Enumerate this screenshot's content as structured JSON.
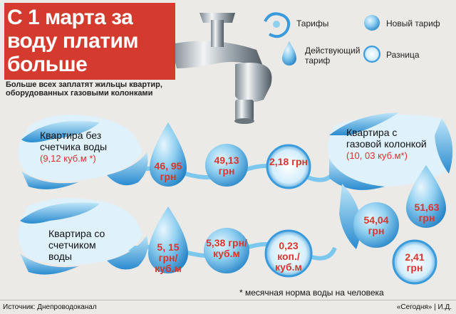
{
  "title": "С 1 марта за воду платим больше",
  "subtitle": "Больше всех заплатят жильцы квартир, оборудованных газовыми колонками",
  "legend": {
    "tariffs": "Тарифы",
    "new_tariff": "Новый тариф",
    "current_tariff": "Действующий тариф",
    "difference": "Разница"
  },
  "apartments": {
    "no_meter": {
      "label": "Квартира без счетчика воды",
      "norm": "(9,12 куб.м *)",
      "current": "46, 95 грн",
      "new": "49,13 грн",
      "diff": "2,18 грн"
    },
    "with_meter": {
      "label": "Квартира со счетчиком воды",
      "current": "5, 15 грн/ куб.м",
      "new": "5,38 грн/ куб.м",
      "diff": "0,23 коп./ куб.м"
    },
    "gas": {
      "label": "Квартира с газовой колонкой",
      "norm": "(10, 03 куб.м*)",
      "current": "51,63 грн",
      "new": "54,04 грн",
      "diff": "2,41 грн"
    }
  },
  "footnote": "* месячная норма воды на человека",
  "source": "Источник: Днепроводоканал",
  "credit": "«Сегодня» | И.Д.",
  "colors": {
    "banner": "#d43a2e",
    "value": "#d8362b",
    "drop_light": "#8fcff0",
    "drop_dark": "#1f7fc4"
  }
}
